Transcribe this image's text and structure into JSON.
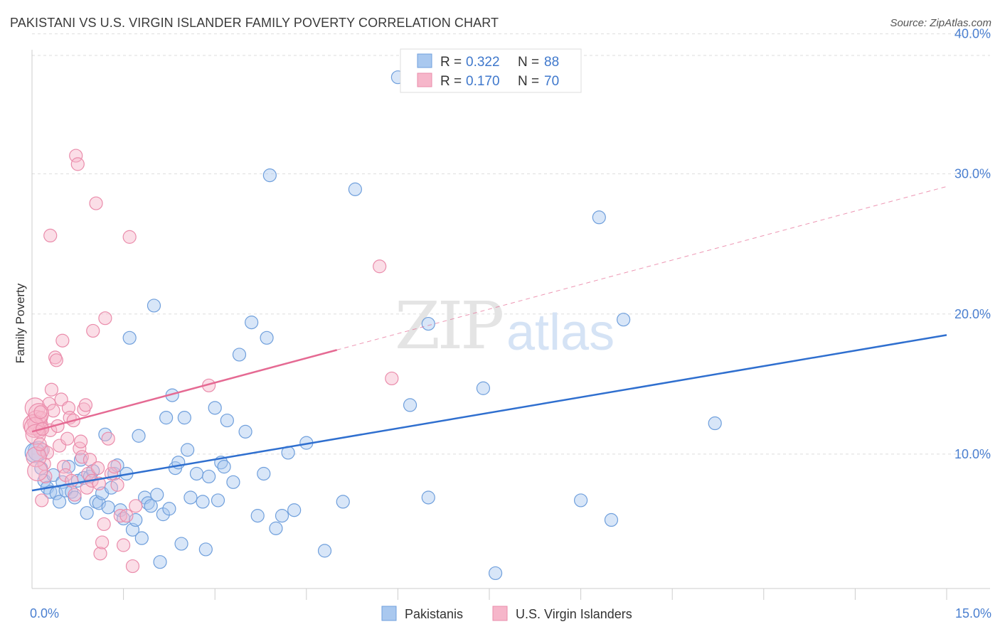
{
  "title": "PAKISTANI VS U.S. VIRGIN ISLANDER FAMILY POVERTY CORRELATION CHART",
  "source": "Source: ZipAtlas.com",
  "watermark": {
    "zip": "ZIP",
    "atlas": "atlas"
  },
  "colors": {
    "blue_fill": "#a9c8ef",
    "blue_stroke": "#6f9fdc",
    "blue_line": "#2f6fcf",
    "pink_fill": "#f6b6ca",
    "pink_stroke": "#ea8cab",
    "pink_line": "#e56a93",
    "grid": "#dddddd",
    "axis_label": "#4a7fd0"
  },
  "legend": [
    {
      "r_label": "R =",
      "r_value": "0.322",
      "n_label": "N =",
      "n_value": "88"
    },
    {
      "r_label": "R =",
      "r_value": "0.170",
      "n_label": "N =",
      "n_value": "70"
    }
  ],
  "bottom_legend": [
    "Pakistanis",
    "U.S. Virgin Islanders"
  ],
  "chart_data": {
    "type": "scatter",
    "title": "PAKISTANI VS U.S. VIRGIN ISLANDER FAMILY POVERTY CORRELATION CHART",
    "xlabel": "",
    "ylabel": "Family Poverty",
    "xlim": [
      0,
      15
    ],
    "ylim": [
      0,
      41.5
    ],
    "x_tick_labels": [
      "0.0%",
      "15.0%"
    ],
    "y_ticks": [
      10,
      20,
      30,
      40
    ],
    "y_tick_labels": [
      "10.0%",
      "20.0%",
      "30.0%",
      "40.0%"
    ],
    "series": [
      {
        "name": "Pakistanis",
        "R": 0.322,
        "N": 88,
        "trend": {
          "x": [
            0,
            15
          ],
          "y": [
            7.4,
            18.5
          ],
          "dashed_from_x": null
        },
        "points": [
          [
            0.1,
            10.2
          ],
          [
            0.15,
            9.0
          ],
          [
            0.2,
            8.1
          ],
          [
            0.25,
            7.6
          ],
          [
            0.3,
            7.3
          ],
          [
            0.35,
            8.5
          ],
          [
            0.4,
            7.2
          ],
          [
            0.45,
            6.6
          ],
          [
            0.5,
            8.0
          ],
          [
            0.55,
            7.4
          ],
          [
            0.6,
            9.1
          ],
          [
            0.65,
            7.3
          ],
          [
            0.7,
            6.9
          ],
          [
            0.75,
            8.1
          ],
          [
            0.8,
            9.6
          ],
          [
            0.85,
            8.3
          ],
          [
            0.9,
            5.8
          ],
          [
            0.95,
            8.4
          ],
          [
            1.0,
            8.8
          ],
          [
            1.05,
            6.6
          ],
          [
            1.1,
            6.5
          ],
          [
            1.15,
            7.2
          ],
          [
            1.2,
            11.4
          ],
          [
            1.25,
            6.2
          ],
          [
            1.3,
            7.6
          ],
          [
            1.35,
            8.6
          ],
          [
            1.4,
            9.2
          ],
          [
            1.45,
            6.0
          ],
          [
            1.5,
            5.4
          ],
          [
            1.55,
            8.6
          ],
          [
            1.6,
            18.3
          ],
          [
            1.65,
            4.6
          ],
          [
            1.7,
            5.3
          ],
          [
            1.75,
            11.3
          ],
          [
            1.8,
            4.0
          ],
          [
            1.85,
            6.9
          ],
          [
            1.9,
            6.5
          ],
          [
            1.95,
            6.3
          ],
          [
            2.0,
            20.6
          ],
          [
            2.05,
            7.1
          ],
          [
            2.1,
            2.3
          ],
          [
            2.15,
            5.7
          ],
          [
            2.2,
            12.6
          ],
          [
            2.25,
            6.1
          ],
          [
            2.3,
            14.2
          ],
          [
            2.35,
            9.0
          ],
          [
            2.4,
            9.4
          ],
          [
            2.45,
            3.6
          ],
          [
            2.5,
            12.6
          ],
          [
            2.55,
            10.3
          ],
          [
            2.6,
            6.9
          ],
          [
            2.7,
            8.6
          ],
          [
            2.8,
            6.6
          ],
          [
            2.85,
            3.2
          ],
          [
            2.9,
            8.4
          ],
          [
            3.0,
            13.3
          ],
          [
            3.05,
            6.7
          ],
          [
            3.1,
            9.4
          ],
          [
            3.15,
            9.1
          ],
          [
            3.9,
            29.9
          ],
          [
            3.2,
            12.4
          ],
          [
            3.3,
            8.0
          ],
          [
            3.4,
            17.1
          ],
          [
            3.5,
            11.6
          ],
          [
            3.6,
            19.4
          ],
          [
            3.7,
            5.6
          ],
          [
            3.8,
            8.6
          ],
          [
            3.85,
            18.3
          ],
          [
            4.0,
            4.7
          ],
          [
            4.1,
            5.6
          ],
          [
            4.2,
            10.1
          ],
          [
            4.3,
            6.0
          ],
          [
            4.5,
            10.8
          ],
          [
            4.8,
            3.1
          ],
          [
            5.1,
            6.6
          ],
          [
            5.3,
            28.9
          ],
          [
            6.0,
            36.9
          ],
          [
            6.2,
            13.5
          ],
          [
            6.5,
            6.9
          ],
          [
            6.5,
            19.3
          ],
          [
            7.4,
            14.7
          ],
          [
            7.6,
            1.5
          ],
          [
            9.0,
            6.7
          ],
          [
            9.3,
            26.9
          ],
          [
            9.5,
            5.3
          ],
          [
            9.7,
            19.6
          ],
          [
            11.2,
            12.2
          ],
          [
            0.05,
            10.1
          ]
        ]
      },
      {
        "name": "U.S. Virgin Islanders",
        "R": 0.17,
        "N": 70,
        "trend": {
          "x": [
            0,
            15
          ],
          "y": [
            11.6,
            29.1
          ],
          "dashed_from_x": 5.0
        },
        "points": [
          [
            0.05,
            13.3
          ],
          [
            0.08,
            12.4
          ],
          [
            0.1,
            12.0
          ],
          [
            0.12,
            11.6
          ],
          [
            0.15,
            12.6
          ],
          [
            0.18,
            10.3
          ],
          [
            0.2,
            9.3
          ],
          [
            0.22,
            8.4
          ],
          [
            0.25,
            10.1
          ],
          [
            0.28,
            13.6
          ],
          [
            0.3,
            11.7
          ],
          [
            0.32,
            14.6
          ],
          [
            0.35,
            13.1
          ],
          [
            0.38,
            16.9
          ],
          [
            0.4,
            16.7
          ],
          [
            0.42,
            12.0
          ],
          [
            0.45,
            10.6
          ],
          [
            0.48,
            13.9
          ],
          [
            0.5,
            18.1
          ],
          [
            0.52,
            9.1
          ],
          [
            0.55,
            8.5
          ],
          [
            0.58,
            11.1
          ],
          [
            0.6,
            13.3
          ],
          [
            0.62,
            12.6
          ],
          [
            0.65,
            8.1
          ],
          [
            0.68,
            12.4
          ],
          [
            0.7,
            7.1
          ],
          [
            0.72,
            31.3
          ],
          [
            0.75,
            30.7
          ],
          [
            0.78,
            10.4
          ],
          [
            0.8,
            10.9
          ],
          [
            0.82,
            9.8
          ],
          [
            0.85,
            13.2
          ],
          [
            0.88,
            13.5
          ],
          [
            0.9,
            7.6
          ],
          [
            0.92,
            8.6
          ],
          [
            0.95,
            9.6
          ],
          [
            0.98,
            8.1
          ],
          [
            1.0,
            18.8
          ],
          [
            1.05,
            27.9
          ],
          [
            1.08,
            9.0
          ],
          [
            1.1,
            7.9
          ],
          [
            1.12,
            2.9
          ],
          [
            1.15,
            3.7
          ],
          [
            1.18,
            5.0
          ],
          [
            1.2,
            19.7
          ],
          [
            1.25,
            11.1
          ],
          [
            1.3,
            8.6
          ],
          [
            1.35,
            9.1
          ],
          [
            1.4,
            7.8
          ],
          [
            1.45,
            5.6
          ],
          [
            1.5,
            3.5
          ],
          [
            1.55,
            5.6
          ],
          [
            1.6,
            25.5
          ],
          [
            1.65,
            2.0
          ],
          [
            1.7,
            6.3
          ],
          [
            0.3,
            25.6
          ],
          [
            2.9,
            14.9
          ],
          [
            5.7,
            23.4
          ],
          [
            5.9,
            15.4
          ],
          [
            0.02,
            12.1
          ],
          [
            0.04,
            11.9
          ],
          [
            0.06,
            11.4
          ],
          [
            0.07,
            9.8
          ],
          [
            0.09,
            8.8
          ],
          [
            0.11,
            12.9
          ],
          [
            0.13,
            10.7
          ],
          [
            0.14,
            13.0
          ],
          [
            0.16,
            6.7
          ],
          [
            0.17,
            11.8
          ]
        ]
      }
    ]
  }
}
